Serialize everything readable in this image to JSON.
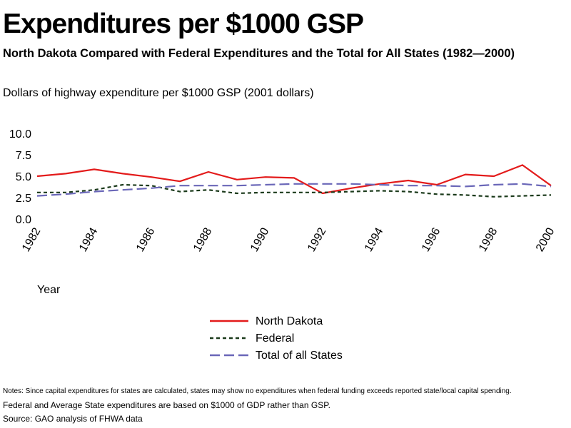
{
  "page": {
    "title": "Expenditures per $1000 GSP",
    "subtitle": "North Dakota Compared with Federal Expenditures and the Total for All States (1982—2000)",
    "notes": "Notes: Since capital expenditures for states are calculated, states may show no expenditures when federal funding exceeds reported state/local capital spending.",
    "note2": "Federal and Average State expenditures are based on $1000 of GDP rather than GSP.",
    "source": "Source: GAO analysis of FHWA data"
  },
  "chart_data": {
    "type": "line",
    "ylabel": "Dollars of highway expenditure per $1000 GSP (2001 dollars)",
    "xlabel": "Year",
    "ylim": [
      0,
      10
    ],
    "xlim": [
      1982,
      2000
    ],
    "yticks": [
      "10.0",
      "7.5",
      "5.0",
      "2.5",
      "0.0"
    ],
    "ytick_values": [
      10,
      7.5,
      5,
      2.5,
      0
    ],
    "xticks": [
      "1982",
      "1984",
      "1986",
      "1988",
      "1990",
      "1992",
      "1994",
      "1996",
      "1998",
      "2000"
    ],
    "xtick_values": [
      1982,
      1984,
      1986,
      1988,
      1990,
      1992,
      1994,
      1996,
      1998,
      2000
    ],
    "grid": false,
    "legend_position": "bottom-center",
    "x": [
      1982,
      1983,
      1984,
      1985,
      1986,
      1987,
      1988,
      1989,
      1990,
      1991,
      1992,
      1993,
      1994,
      1995,
      1996,
      1997,
      1998,
      1999,
      2000
    ],
    "series": [
      {
        "name": "North Dakota",
        "color": "#e31b1b",
        "style": "solid",
        "values": [
          5.0,
          5.3,
          5.8,
          5.3,
          4.9,
          4.4,
          5.5,
          4.6,
          4.9,
          4.8,
          3.0,
          3.6,
          4.1,
          4.5,
          4.0,
          5.2,
          5.0,
          6.3,
          3.9
        ]
      },
      {
        "name": "Federal",
        "color": "#1b3a1b",
        "style": "dotted",
        "values": [
          3.1,
          3.1,
          3.4,
          4.0,
          3.9,
          3.2,
          3.4,
          3.0,
          3.1,
          3.1,
          3.1,
          3.2,
          3.3,
          3.2,
          2.9,
          2.8,
          2.6,
          2.7,
          2.8
        ]
      },
      {
        "name": "Total of all States",
        "color": "#6a67b8",
        "style": "dashed",
        "values": [
          2.7,
          2.9,
          3.2,
          3.4,
          3.6,
          3.9,
          3.9,
          3.9,
          4.0,
          4.1,
          4.1,
          4.1,
          4.0,
          3.9,
          3.9,
          3.8,
          4.0,
          4.1,
          3.8
        ]
      }
    ]
  }
}
